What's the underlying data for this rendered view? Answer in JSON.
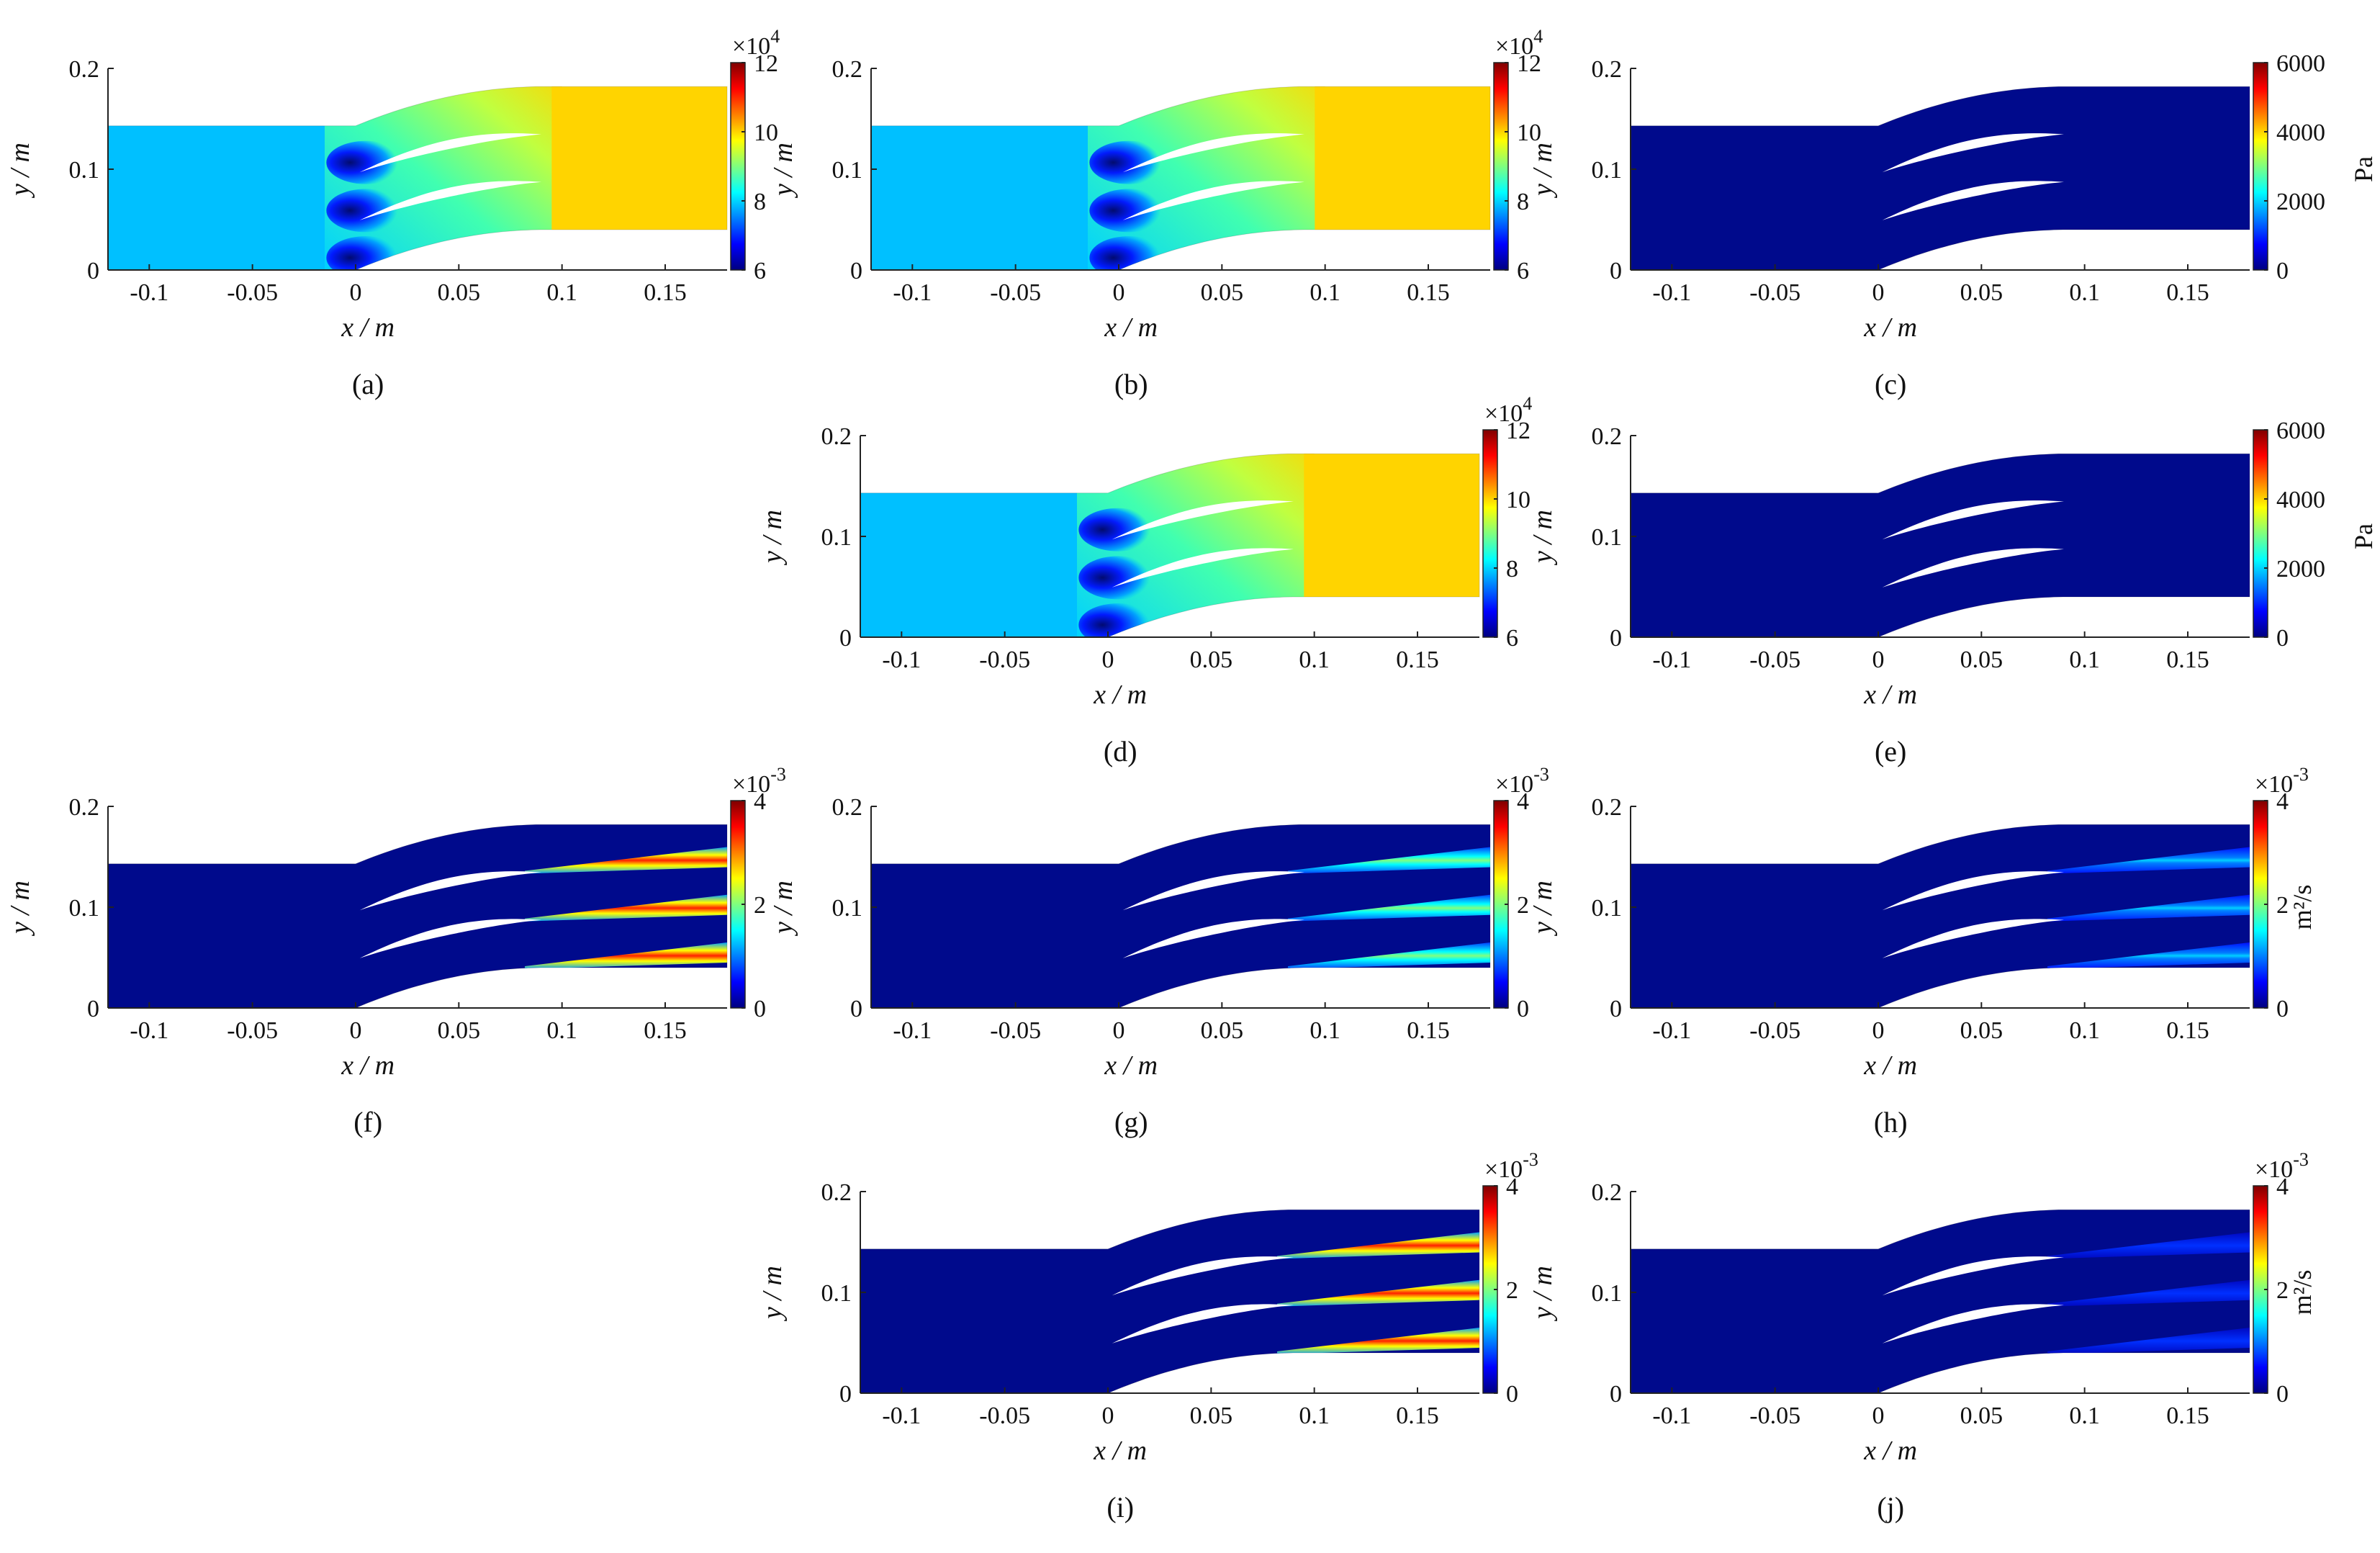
{
  "colormap": [
    "#00007f",
    "#0000ff",
    "#007fff",
    "#00ffff",
    "#7fff7f",
    "#ffff00",
    "#ff7f00",
    "#ff0000",
    "#7f0000"
  ],
  "colors": {
    "inflow_field": "#00c0ff",
    "passage_field": "#ffd400",
    "background_field": "#000a8c",
    "blade": "#ffffff"
  },
  "panels": [
    {
      "id": "a",
      "caption": "(a)",
      "field": "pressure",
      "colorbar": {
        "ticks": [
          "6",
          "8",
          "10",
          "12"
        ],
        "exponent": "×10",
        "exponent_power": "4",
        "unit": ""
      }
    },
    {
      "id": "b",
      "caption": "(b)",
      "field": "pressure",
      "colorbar": {
        "ticks": [
          "6",
          "8",
          "10",
          "12"
        ],
        "exponent": "×10",
        "exponent_power": "4",
        "unit": ""
      }
    },
    {
      "id": "c",
      "caption": "(c)",
      "field": "low",
      "colorbar": {
        "ticks": [
          "0",
          "2000",
          "4000",
          "6000"
        ],
        "exponent": "",
        "exponent_power": "",
        "unit": "Pa"
      }
    },
    {
      "id": "d",
      "caption": "(d)",
      "field": "pressure",
      "colorbar": {
        "ticks": [
          "6",
          "8",
          "10",
          "12"
        ],
        "exponent": "×10",
        "exponent_power": "4",
        "unit": ""
      }
    },
    {
      "id": "e",
      "caption": "(e)",
      "field": "low",
      "colorbar": {
        "ticks": [
          "0",
          "2000",
          "4000",
          "6000"
        ],
        "exponent": "",
        "exponent_power": "",
        "unit": "Pa"
      }
    },
    {
      "id": "f",
      "caption": "(f)",
      "field": "wake_strong",
      "colorbar": {
        "ticks": [
          "0",
          "2",
          "4"
        ],
        "exponent": "×10",
        "exponent_power": "-3",
        "unit": ""
      }
    },
    {
      "id": "g",
      "caption": "(g)",
      "field": "wake_medium",
      "colorbar": {
        "ticks": [
          "0",
          "2",
          "4"
        ],
        "exponent": "×10",
        "exponent_power": "-3",
        "unit": ""
      }
    },
    {
      "id": "h",
      "caption": "(h)",
      "field": "wake_weak",
      "colorbar": {
        "ticks": [
          "0",
          "2",
          "4"
        ],
        "exponent": "×10",
        "exponent_power": "-3",
        "unit": "m²/s"
      }
    },
    {
      "id": "i",
      "caption": "(i)",
      "field": "wake_strong",
      "colorbar": {
        "ticks": [
          "0",
          "2",
          "4"
        ],
        "exponent": "×10",
        "exponent_power": "-3",
        "unit": ""
      }
    },
    {
      "id": "j",
      "caption": "(j)",
      "field": "wake_faint",
      "colorbar": {
        "ticks": [
          "0",
          "2",
          "4"
        ],
        "exponent": "×10",
        "exponent_power": "-3",
        "unit": "m²/s"
      }
    }
  ],
  "axes": {
    "xlabel": "x / m",
    "ylabel": "y / m",
    "xticks": [
      "-0.1",
      "-0.05",
      "0",
      "0.05",
      "0.1",
      "0.15"
    ],
    "xtick_values": [
      -0.1,
      -0.05,
      0,
      0.05,
      0.1,
      0.15
    ],
    "yticks": [
      "0",
      "0.1",
      "0.2"
    ],
    "ytick_values": [
      0,
      0.1,
      0.2
    ],
    "xlim": [
      -0.12,
      0.18
    ],
    "ylim": [
      0,
      0.2
    ]
  },
  "geometry_data": {
    "inlet_top": 0.143,
    "outlet_bottom": 0.04,
    "outlet_top": 0.182,
    "cascade_end_x": 0.092,
    "blade_count": 2
  }
}
